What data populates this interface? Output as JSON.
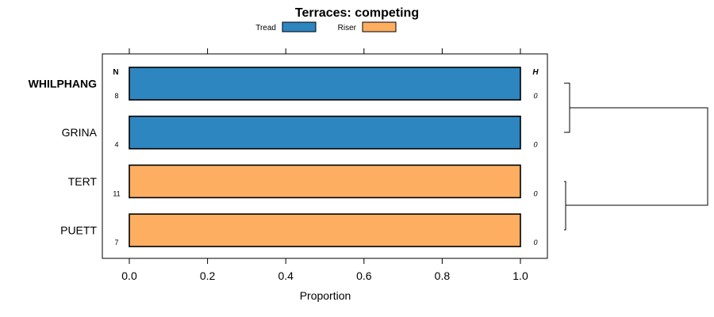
{
  "chart_data": {
    "type": "bar",
    "orientation": "horizontal",
    "stacked": true,
    "title": "Terraces: competing",
    "xlabel": "Proportion",
    "ylabel": "",
    "xlim": [
      0,
      1
    ],
    "xticks": [
      "0.0",
      "0.2",
      "0.4",
      "0.6",
      "0.8",
      "1.0"
    ],
    "xtick_values": [
      0,
      0.2,
      0.4,
      0.6,
      0.8,
      1.0
    ],
    "legend_position": "top",
    "legend": [
      {
        "name": "Tread",
        "color": "#2e86c1"
      },
      {
        "name": "Riser",
        "color": "#fdae61"
      }
    ],
    "n_header": "N",
    "h_header": "H",
    "categories": [
      "WHILPHANG",
      "GRINA",
      "TERT",
      "PUETT"
    ],
    "highlighted_category": "WHILPHANG",
    "n_values": [
      "8",
      "4",
      "11",
      "7"
    ],
    "h_values": [
      "0",
      "0",
      "0",
      "0"
    ],
    "series": [
      {
        "name": "Tread",
        "values": [
          1,
          1,
          0,
          0
        ]
      },
      {
        "name": "Riser",
        "values": [
          0,
          0,
          1,
          1
        ]
      }
    ],
    "dendrogram": "clusters (WHILPHANG, GRINA) and (TERT, PUETT)"
  }
}
